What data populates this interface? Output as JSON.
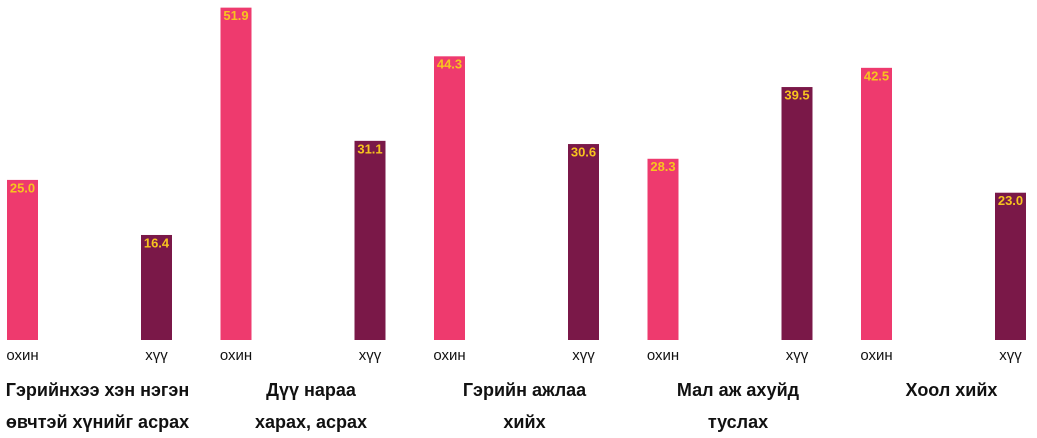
{
  "chart_data": {
    "type": "bar",
    "categories": [
      "Гэрийнхээ хэн нэгэн\nөвчтэй хүнийг асрах",
      "Дүү нараа\nхарах,  асрах",
      "Гэрийн ажлаа\nхийх",
      "Мал аж ахуйд\nтуслах",
      "Хоол хийх"
    ],
    "series": [
      {
        "name": "охин",
        "color": "#ee3a6e",
        "values": [
          25.0,
          51.9,
          44.3,
          28.3,
          42.5
        ],
        "value_labels": [
          "25.0",
          "51.9",
          "44.3",
          "28.3",
          "42.5"
        ]
      },
      {
        "name": "хүү",
        "color": "#7a1848",
        "values": [
          16.4,
          31.1,
          30.6,
          39.5,
          23.0
        ],
        "value_labels": [
          "16.4",
          "31.1",
          "30.6",
          "39.5",
          "23.0"
        ]
      }
    ],
    "ylim": [
      0,
      52
    ]
  }
}
